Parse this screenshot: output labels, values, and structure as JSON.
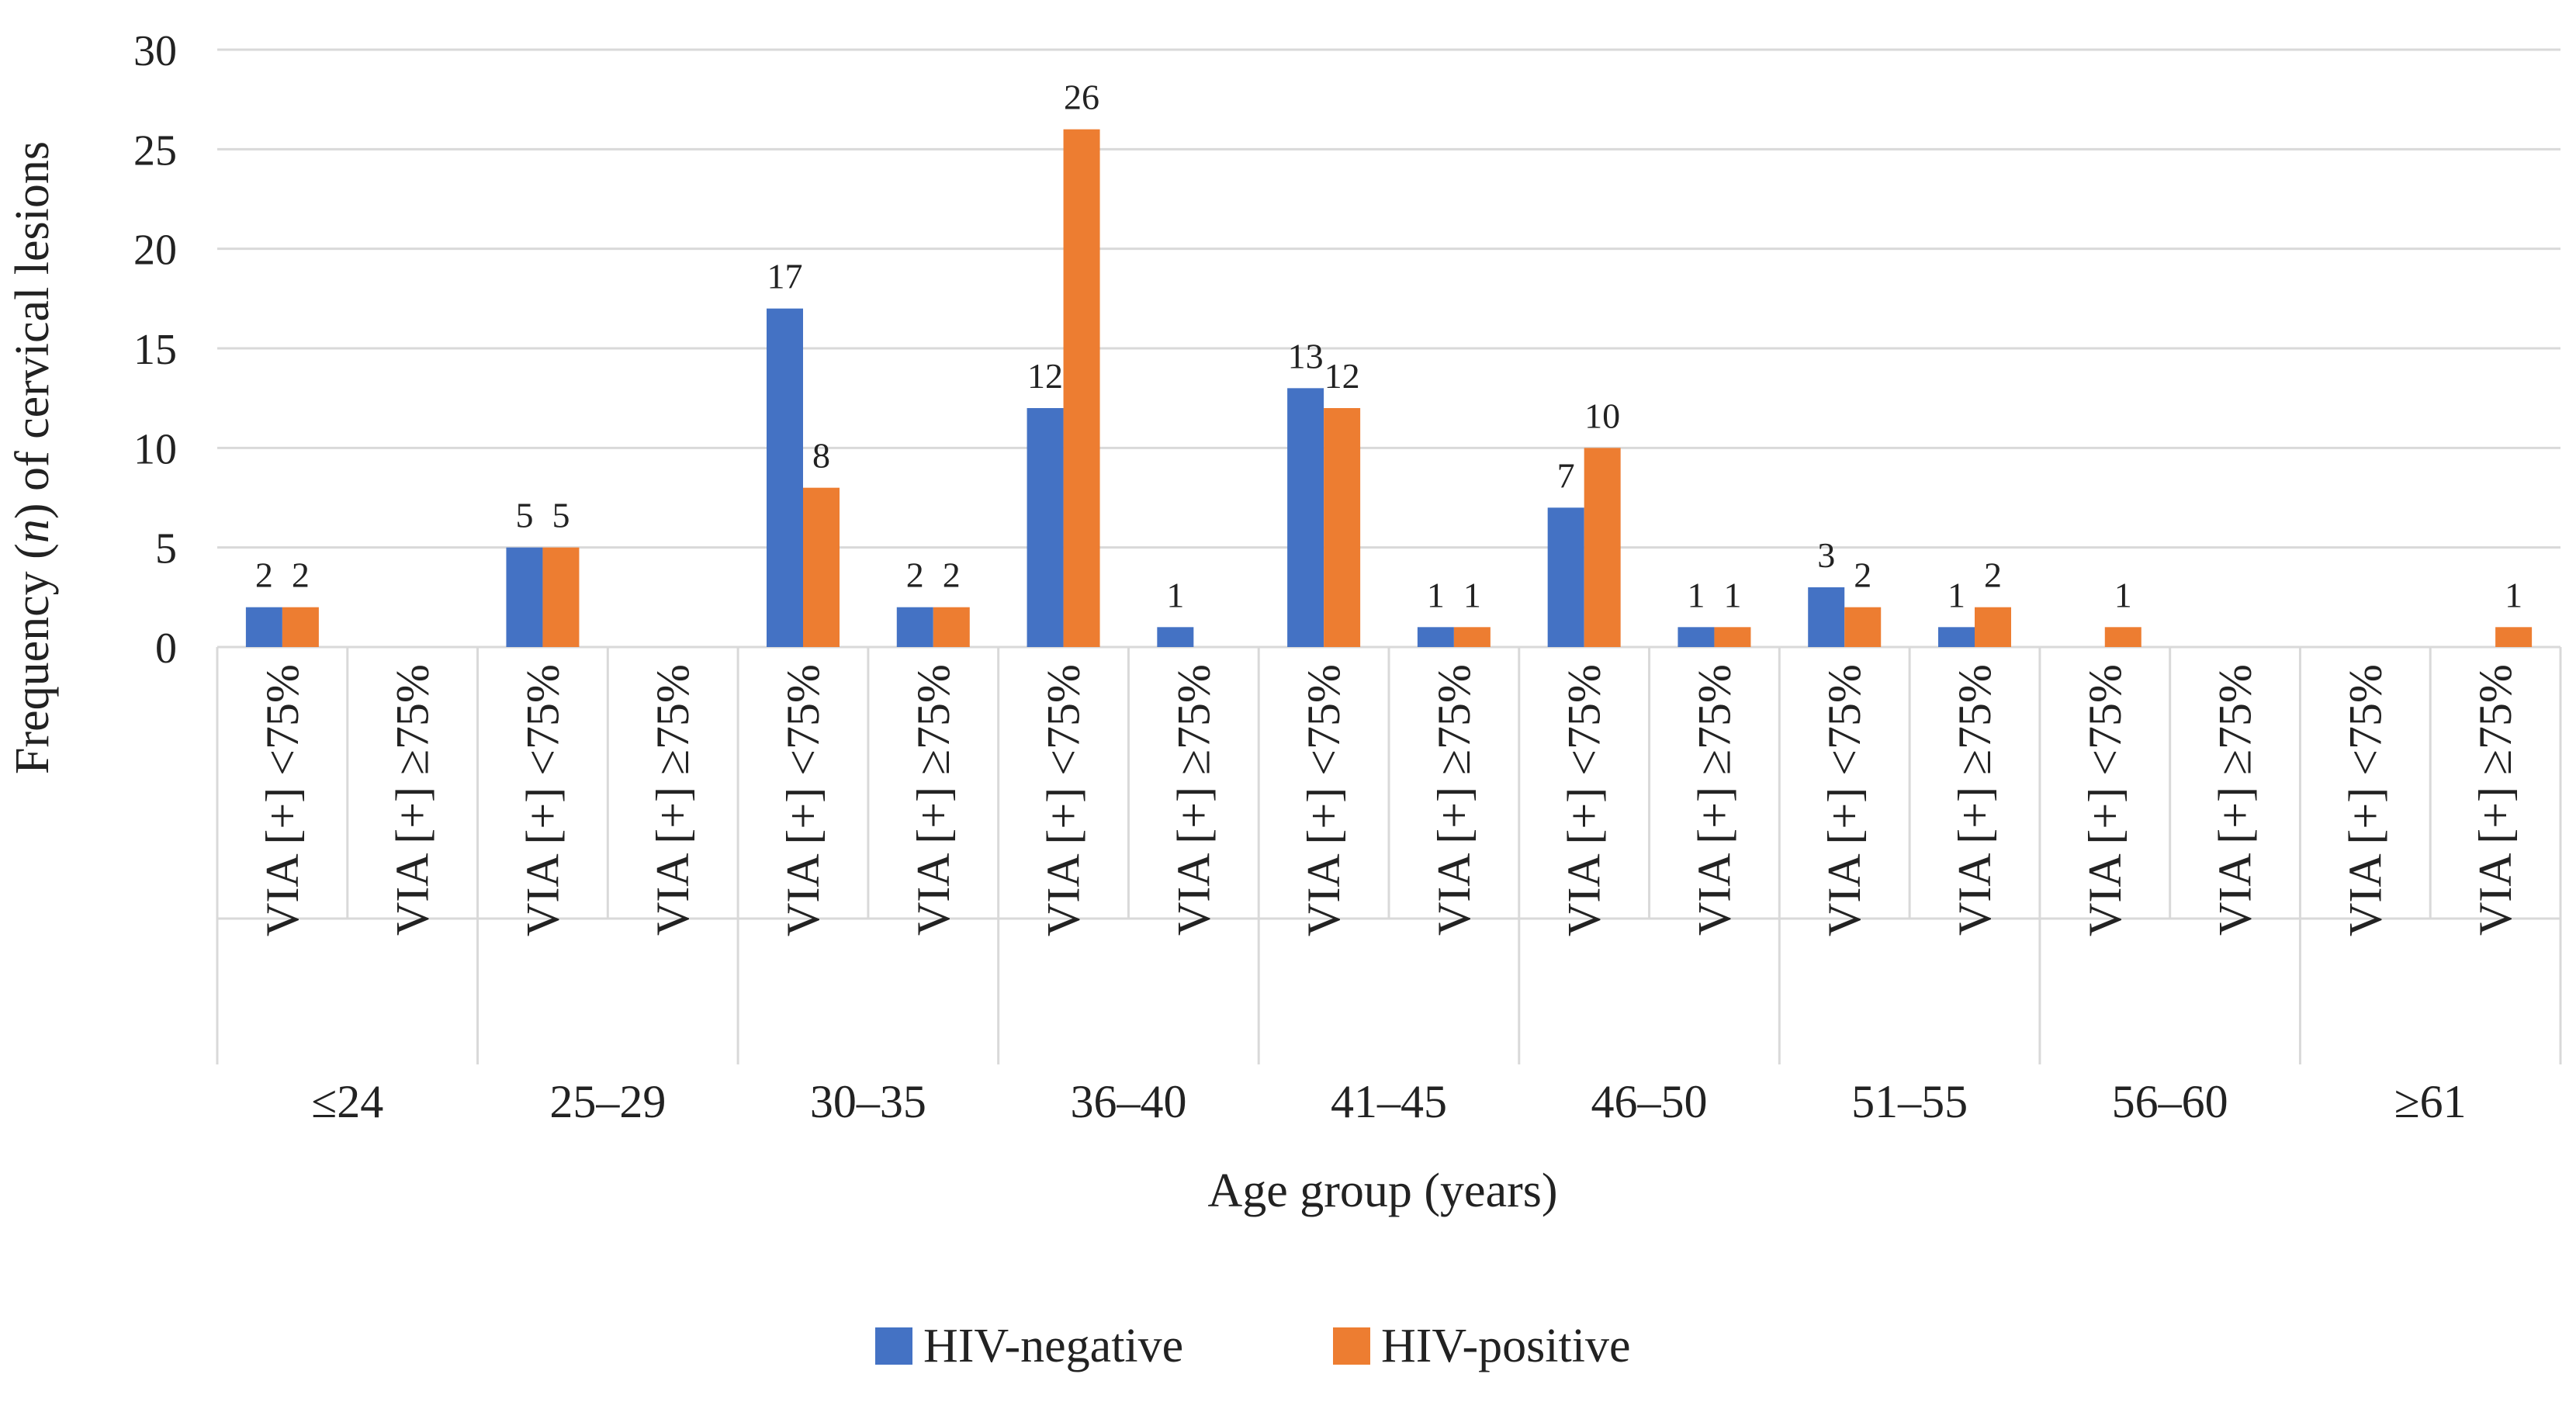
{
  "chart_data": {
    "type": "bar",
    "title": "",
    "ylabel_parts": [
      "Frequency (",
      "n",
      ") of cervical lesions"
    ],
    "xlabel": "Age group (years)",
    "ylim": [
      0,
      30
    ],
    "yticks": [
      0,
      5,
      10,
      15,
      20,
      25,
      30
    ],
    "groups": [
      "≤24",
      "25–29",
      "30–35",
      "36–40",
      "41–45",
      "46–50",
      "51–55",
      "56–60",
      "≥61"
    ],
    "subcategories": [
      "VIA [+] <75%",
      "VIA [+] ≥75%"
    ],
    "series": [
      {
        "name": "HIV-negative",
        "color": "#4472C4",
        "values": [
          2,
          null,
          5,
          null,
          17,
          2,
          12,
          1,
          13,
          1,
          7,
          1,
          3,
          1,
          null,
          null,
          null,
          null
        ]
      },
      {
        "name": "HIV-positive",
        "color": "#ED7D31",
        "values": [
          2,
          null,
          5,
          null,
          8,
          2,
          26,
          null,
          12,
          1,
          10,
          1,
          2,
          2,
          1,
          null,
          null,
          1
        ]
      }
    ],
    "legend_position": "bottom-center",
    "grid": true
  }
}
